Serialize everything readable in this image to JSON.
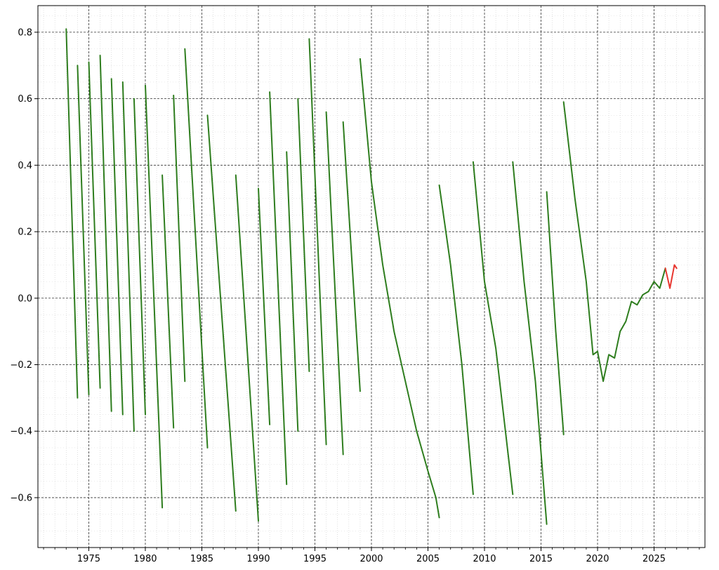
{
  "chart_data": {
    "type": "line",
    "title": "",
    "xlabel": "",
    "ylabel": "",
    "xlim": [
      1970.5,
      2029.5
    ],
    "ylim": [
      -0.75,
      0.88
    ],
    "grid": "on",
    "xticks": [
      1975,
      1980,
      1985,
      1990,
      1995,
      2000,
      2005,
      2010,
      2015,
      2020,
      2025
    ],
    "xtick_labels": [
      "1975",
      "1980",
      "1985",
      "1990",
      "1995",
      "2000",
      "2005",
      "2010",
      "2015",
      "2020",
      "2025"
    ],
    "yticks": [
      -0.6,
      -0.4,
      -0.2,
      0.0,
      0.2,
      0.4,
      0.6,
      0.8
    ],
    "ytick_labels": [
      "−0.6",
      "−0.4",
      "−0.2",
      "0.0",
      "0.2",
      "0.4",
      "0.6",
      "0.8"
    ],
    "colors": {
      "segments": "#2e7d1e",
      "last": "#e8362f",
      "grid": "#333333",
      "minor_grid": "#cccccc"
    },
    "series": [
      {
        "x": [
          1973.0,
          1974.0
        ],
        "y": [
          0.81,
          -0.3
        ],
        "color": "green"
      },
      {
        "x": [
          1974.0,
          1975.0
        ],
        "y": [
          0.7,
          -0.29
        ],
        "color": "green"
      },
      {
        "x": [
          1975.0,
          1976.0
        ],
        "y": [
          0.71,
          -0.27
        ],
        "color": "green"
      },
      {
        "x": [
          1976.0,
          1977.0
        ],
        "y": [
          0.73,
          -0.34
        ],
        "color": "green"
      },
      {
        "x": [
          1977.0,
          1978.0
        ],
        "y": [
          0.66,
          -0.35
        ],
        "color": "green"
      },
      {
        "x": [
          1978.0,
          1979.0
        ],
        "y": [
          0.65,
          -0.4
        ],
        "color": "green"
      },
      {
        "x": [
          1979.0,
          1980.0
        ],
        "y": [
          0.6,
          -0.35
        ],
        "color": "green"
      },
      {
        "x": [
          1980.0,
          1981.5
        ],
        "y": [
          0.64,
          -0.63
        ],
        "color": "green"
      },
      {
        "x": [
          1981.5,
          1982.5
        ],
        "y": [
          0.37,
          -0.39
        ],
        "color": "green"
      },
      {
        "x": [
          1982.5,
          1983.5
        ],
        "y": [
          0.61,
          -0.25
        ],
        "color": "green"
      },
      {
        "x": [
          1983.5,
          1985.5
        ],
        "y": [
          0.75,
          -0.45
        ],
        "color": "green"
      },
      {
        "x": [
          1985.5,
          1988.0
        ],
        "y": [
          0.55,
          -0.64
        ],
        "color": "green"
      },
      {
        "x": [
          1988.0,
          1990.0
        ],
        "y": [
          0.37,
          -0.67
        ],
        "color": "green"
      },
      {
        "x": [
          1990.0,
          1991.0
        ],
        "y": [
          0.33,
          -0.38
        ],
        "color": "green"
      },
      {
        "x": [
          1991.0,
          1992.5
        ],
        "y": [
          0.62,
          -0.56
        ],
        "color": "green"
      },
      {
        "x": [
          1992.5,
          1993.5
        ],
        "y": [
          0.44,
          -0.4
        ],
        "color": "green"
      },
      {
        "x": [
          1993.5,
          1994.5
        ],
        "y": [
          0.6,
          -0.22
        ],
        "color": "green"
      },
      {
        "x": [
          1994.5,
          1996.0
        ],
        "y": [
          0.78,
          -0.44
        ],
        "color": "green"
      },
      {
        "x": [
          1996.0,
          1997.5
        ],
        "y": [
          0.56,
          -0.47
        ],
        "color": "green"
      },
      {
        "x": [
          1997.5,
          1999.0
        ],
        "y": [
          0.53,
          -0.28
        ],
        "color": "green"
      },
      {
        "x": [
          1999.0,
          2000.0,
          2001.0,
          2002.0,
          2003.0,
          2004.0,
          2005.0,
          2005.7,
          2006.0
        ],
        "y": [
          0.72,
          0.35,
          0.1,
          -0.1,
          -0.25,
          -0.4,
          -0.52,
          -0.6,
          -0.66
        ],
        "color": "green"
      },
      {
        "x": [
          2006.0,
          2007.0,
          2008.0,
          2009.0
        ],
        "y": [
          0.34,
          0.1,
          -0.2,
          -0.59
        ],
        "color": "green"
      },
      {
        "x": [
          2009.0,
          2010.0,
          2011.0,
          2012.5
        ],
        "y": [
          0.41,
          0.05,
          -0.15,
          -0.59
        ],
        "color": "green"
      },
      {
        "x": [
          2012.5,
          2013.5,
          2014.5,
          2015.5
        ],
        "y": [
          0.41,
          0.05,
          -0.25,
          -0.68
        ],
        "color": "green"
      },
      {
        "x": [
          2015.5,
          2016.3,
          2017.0
        ],
        "y": [
          0.32,
          -0.1,
          -0.41
        ],
        "color": "green"
      },
      {
        "x": [
          2017.0,
          2018.0,
          2019.0,
          2019.6,
          2020.0,
          2020.5,
          2021.0,
          2021.5,
          2022.0,
          2022.5,
          2023.0,
          2023.5,
          2024.0,
          2024.5,
          2025.0,
          2025.5,
          2026.0
        ],
        "y": [
          0.59,
          0.3,
          0.05,
          -0.17,
          -0.16,
          -0.25,
          -0.17,
          -0.18,
          -0.1,
          -0.07,
          -0.01,
          -0.02,
          0.01,
          0.02,
          0.05,
          0.03,
          0.09
        ],
        "color": "green"
      },
      {
        "x": [
          2026.0,
          2026.4,
          2026.8,
          2027.0
        ],
        "y": [
          0.09,
          0.03,
          0.1,
          0.09
        ],
        "color": "red"
      }
    ]
  }
}
